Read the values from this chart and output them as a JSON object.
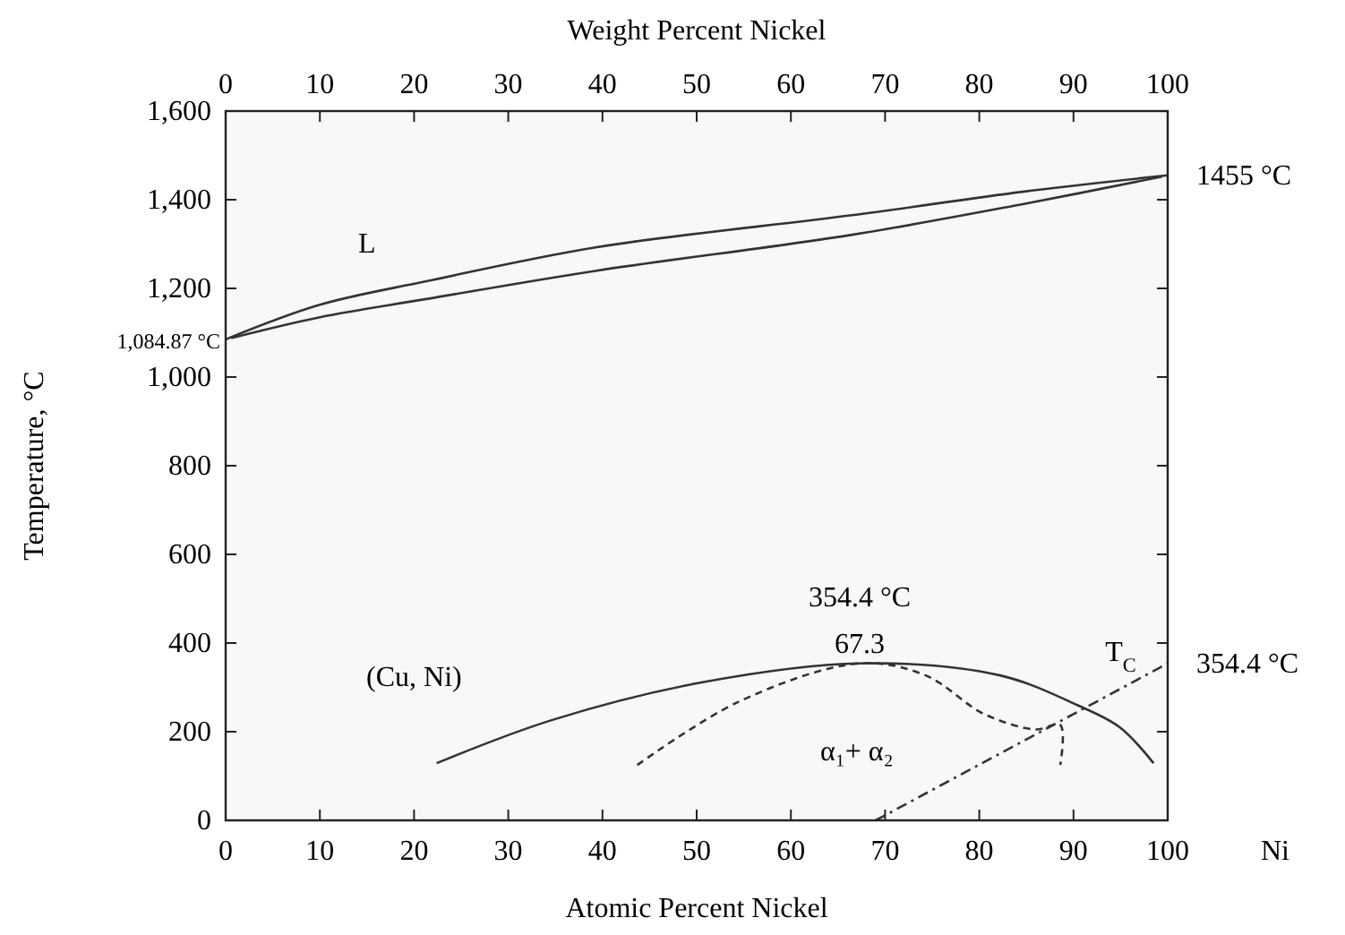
{
  "chart_data": {
    "type": "line",
    "xlabel": "Atomic Percent Nickel",
    "ylabel": "Temperature, °C",
    "x2label": "Weight Percent Nickel",
    "xlim": [
      0,
      100
    ],
    "xticks": [
      0,
      10,
      20,
      30,
      40,
      50,
      60,
      70,
      80,
      90,
      100
    ],
    "x2lim": [
      0,
      100
    ],
    "x2ticks": [
      0,
      10,
      20,
      30,
      40,
      50,
      60,
      70,
      80,
      90,
      100
    ],
    "ylim": [
      0,
      1600
    ],
    "yticks": [
      {
        "value": 0,
        "label": "0"
      },
      {
        "value": 200,
        "label": "200"
      },
      {
        "value": 400,
        "label": "400"
      },
      {
        "value": 600,
        "label": "600"
      },
      {
        "value": 800,
        "label": "800"
      },
      {
        "value": 1000,
        "label": "1,000"
      },
      {
        "value": 1200,
        "label": "1,200"
      },
      {
        "value": 1400,
        "label": "1,400"
      },
      {
        "value": 1600,
        "label": "1,600"
      }
    ],
    "series": [
      {
        "color": "#333333",
        "line_style": "solid",
        "x": [
          0,
          10,
          21.3,
          39.4,
          66.5,
          84.6,
          100
        ],
        "values": [
          1085,
          1163,
          1216,
          1293,
          1365,
          1418,
          1455
        ]
      },
      {
        "color": "#333333",
        "line_style": "solid",
        "x": [
          0.6,
          10,
          21.3,
          39.4,
          66.5,
          84.6,
          99.4
        ],
        "values": [
          1088,
          1135,
          1176,
          1240,
          1321,
          1390,
          1452
        ]
      },
      {
        "color": "#333333",
        "line_style": "solid",
        "x": [
          22.4,
          34.6,
          50.5,
          67.3,
          82.2,
          90.5,
          94.9,
          98.5
        ],
        "values": [
          129,
          226,
          311,
          354,
          327,
          259,
          210,
          129
        ]
      },
      {
        "color": "#333333",
        "line_style": "dashed",
        "x": [
          43.7,
          54.5,
          67.3,
          74.3,
          80.5,
          86,
          88.6,
          88.6
        ],
        "values": [
          125,
          268,
          354,
          327,
          240,
          205,
          215,
          125
        ]
      },
      {
        "color": "#333333",
        "line_style": "dotted",
        "x": [
          69,
          100
        ],
        "values": [
          0,
          354
        ]
      }
    ],
    "annotations": [
      "L",
      "(Cu, Ni)",
      "α₁+ α₂",
      "T$_{C}$",
      "Ni",
      {
        "text": "67.3",
        "x": 67.3,
        "y": 354
      },
      {
        "text": "354.4 °C",
        "x": 67.3,
        "y": 354
      },
      {
        "text": "1455 °C",
        "x": 100,
        "y": 1455
      },
      {
        "text": "1,084.87 °C",
        "x": 0,
        "y": 1085
      },
      {
        "text": "354.4 °C",
        "x": 100,
        "y": 354
      }
    ]
  }
}
